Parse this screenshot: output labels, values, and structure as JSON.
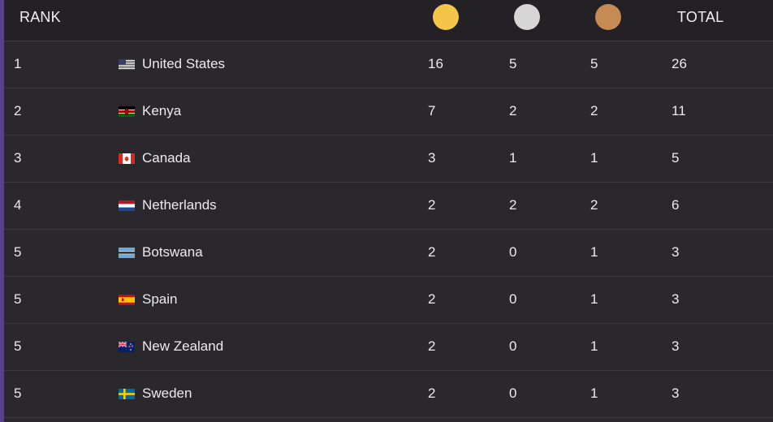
{
  "header": {
    "rank_label": "RANK",
    "total_label": "TOTAL",
    "gold_color": "#f3c64a",
    "silver_color": "#d6d6d6",
    "bronze_color": "#c68a55"
  },
  "rows": [
    {
      "rank": "1",
      "country": "United States",
      "flag": "us-flag",
      "gold": "16",
      "silver": "5",
      "bronze": "5",
      "total": "26"
    },
    {
      "rank": "2",
      "country": "Kenya",
      "flag": "kenya-flag",
      "gold": "7",
      "silver": "2",
      "bronze": "2",
      "total": "11"
    },
    {
      "rank": "3",
      "country": "Canada",
      "flag": "canada-flag",
      "gold": "3",
      "silver": "1",
      "bronze": "1",
      "total": "5"
    },
    {
      "rank": "4",
      "country": "Netherlands",
      "flag": "netherlands-flag",
      "gold": "2",
      "silver": "2",
      "bronze": "2",
      "total": "6"
    },
    {
      "rank": "5",
      "country": "Botswana",
      "flag": "botswana-flag",
      "gold": "2",
      "silver": "0",
      "bronze": "1",
      "total": "3"
    },
    {
      "rank": "5",
      "country": "Spain",
      "flag": "spain-flag",
      "gold": "2",
      "silver": "0",
      "bronze": "1",
      "total": "3"
    },
    {
      "rank": "5",
      "country": "New Zealand",
      "flag": "new-zealand-flag",
      "gold": "2",
      "silver": "0",
      "bronze": "1",
      "total": "3"
    },
    {
      "rank": "5",
      "country": "Sweden",
      "flag": "sweden-flag",
      "gold": "2",
      "silver": "0",
      "bronze": "1",
      "total": "3"
    }
  ]
}
